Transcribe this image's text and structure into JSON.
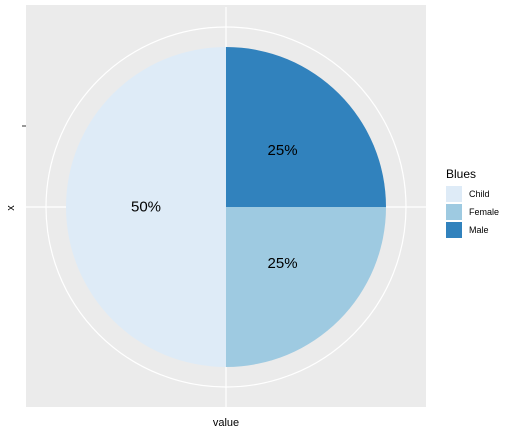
{
  "chart_data": {
    "type": "pie",
    "xlabel": "value",
    "ylabel": "x",
    "legend_title": "Blues",
    "legend_position": "right",
    "categories": [
      "Child",
      "Female",
      "Male"
    ],
    "values": [
      50,
      25,
      25
    ],
    "labels": [
      "50%",
      "25%",
      "25%"
    ],
    "colors": [
      "#deebf7",
      "#9ecae1",
      "#3182bd"
    ],
    "panel_background": "#ebebeb",
    "grid": true
  }
}
